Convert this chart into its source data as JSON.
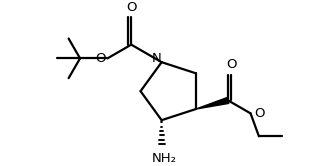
{
  "bg_color": "#ffffff",
  "line_color": "#000000",
  "line_width": 1.6,
  "figsize": [
    3.36,
    1.66
  ],
  "dpi": 100,
  "xlim": [
    -3.8,
    4.2
  ],
  "ylim": [
    -2.2,
    2.5
  ],
  "font_size": 9.5
}
